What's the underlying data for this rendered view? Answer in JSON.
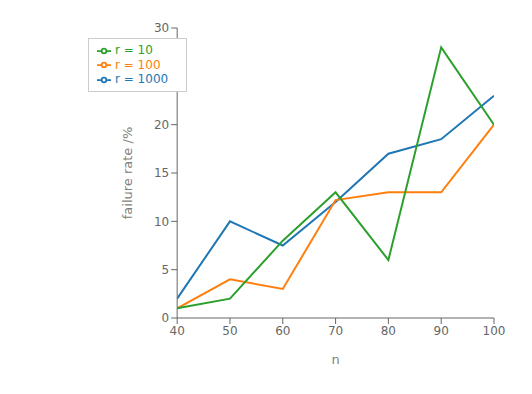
{
  "chart_data": {
    "type": "line",
    "x": [
      40,
      50,
      60,
      70,
      80,
      90,
      100
    ],
    "series": [
      {
        "name": "r = 1000",
        "color": "#1f77b4",
        "values": [
          2,
          10,
          7.5,
          12,
          17,
          18.5,
          23
        ]
      },
      {
        "name": "r = 100",
        "color": "#ff7f0e",
        "values": [
          1,
          4,
          3,
          12.2,
          13,
          13,
          20
        ]
      },
      {
        "name": "r = 10",
        "color": "#2ca02c",
        "values": [
          1,
          2,
          8,
          13,
          6,
          28,
          20
        ]
      }
    ],
    "xlabel": "n",
    "ylabel": "failure rate /%",
    "xlim": [
      40,
      100
    ],
    "xticks": [
      40,
      50,
      60,
      70,
      80,
      90,
      100
    ],
    "ylim": [
      0,
      30
    ],
    "yticks": [
      0,
      5,
      10,
      15,
      20,
      25,
      30
    ],
    "legend": "upper left",
    "grid": false
  }
}
